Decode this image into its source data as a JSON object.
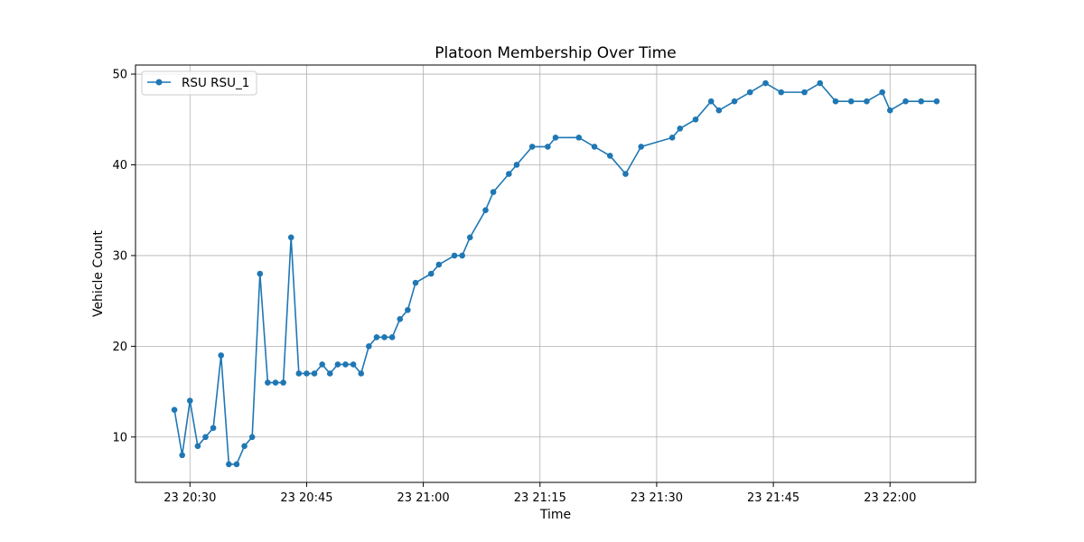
{
  "chart_data": {
    "type": "line",
    "title": "Platoon Membership Over Time",
    "xlabel": "Time",
    "ylabel": "Vehicle Count",
    "x_tick_labels": [
      "23 20:30",
      "23 20:45",
      "23 21:00",
      "23 21:15",
      "23 21:30",
      "23 21:45",
      "23 22:00"
    ],
    "x_tick_times": [
      "20:30",
      "20:45",
      "21:00",
      "21:15",
      "21:30",
      "21:45",
      "22:00"
    ],
    "y_ticks": [
      10,
      20,
      30,
      40,
      50
    ],
    "xlim": [
      "20:23:00",
      "22:11:00"
    ],
    "ylim": [
      5,
      51
    ],
    "grid": true,
    "legend_position": "top-left",
    "color": "#1f77b4",
    "series": [
      {
        "name": "RSU RSU_1",
        "x": [
          "20:28",
          "20:29",
          "20:30",
          "20:31",
          "20:32",
          "20:33",
          "20:34",
          "20:35",
          "20:36",
          "20:37",
          "20:38",
          "20:39",
          "20:40",
          "20:41",
          "20:42",
          "20:43",
          "20:44",
          "20:45",
          "20:46",
          "20:47",
          "20:48",
          "20:49",
          "20:50",
          "20:51",
          "20:52",
          "20:53",
          "20:54",
          "20:55",
          "20:56",
          "20:57",
          "20:58",
          "20:59",
          "21:01",
          "21:02",
          "21:04",
          "21:05",
          "21:06",
          "21:08",
          "21:09",
          "21:11",
          "21:12",
          "21:14",
          "21:16",
          "21:17",
          "21:20",
          "21:22",
          "21:24",
          "21:26",
          "21:28",
          "21:32",
          "21:33",
          "21:35",
          "21:37",
          "21:38",
          "21:40",
          "21:42",
          "21:44",
          "21:46",
          "21:49",
          "21:51",
          "21:53",
          "21:55",
          "21:57",
          "21:59",
          "22:00",
          "22:02",
          "22:04",
          "22:06"
        ],
        "y": [
          13,
          8,
          14,
          9,
          10,
          11,
          19,
          7,
          7,
          9,
          10,
          28,
          16,
          16,
          16,
          32,
          17,
          17,
          17,
          18,
          17,
          18,
          18,
          18,
          17,
          20,
          21,
          21,
          21,
          23,
          24,
          27,
          28,
          29,
          30,
          30,
          32,
          35,
          37,
          39,
          40,
          42,
          42,
          43,
          43,
          42,
          41,
          39,
          42,
          43,
          44,
          45,
          47,
          46,
          47,
          48,
          49,
          48,
          48,
          49,
          47,
          47,
          47,
          48,
          46,
          47,
          47,
          47
        ]
      }
    ]
  }
}
